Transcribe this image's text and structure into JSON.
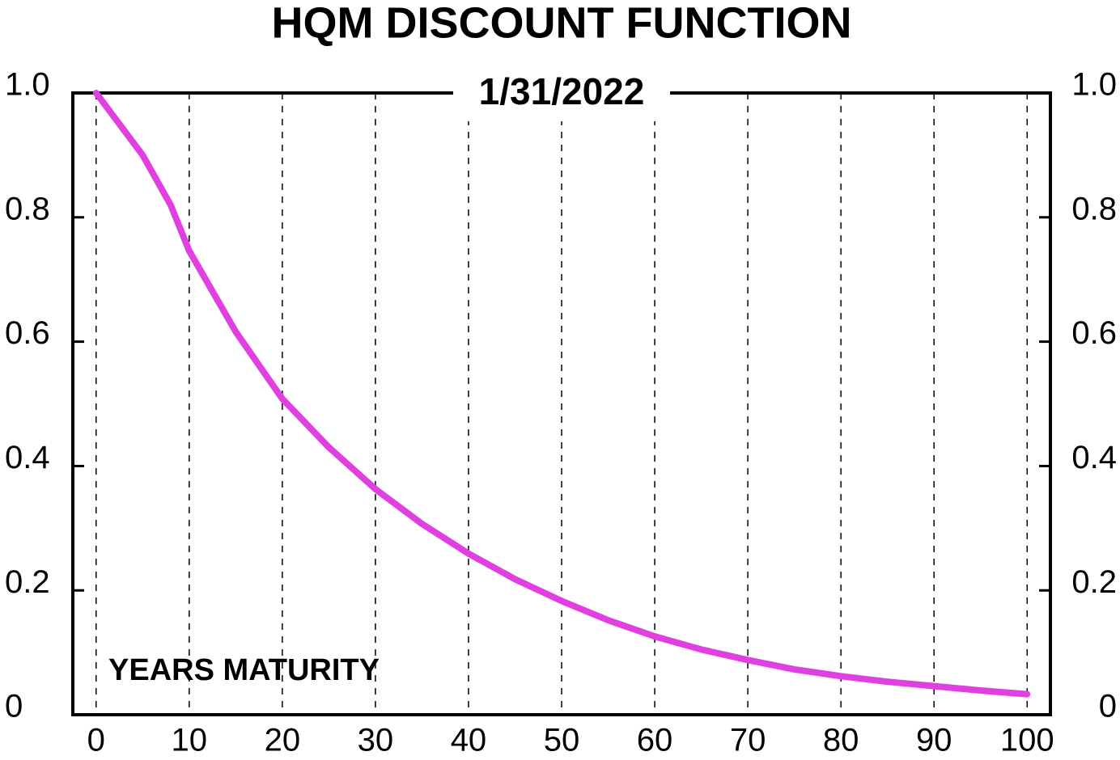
{
  "chart_data": {
    "type": "line",
    "title": "HQM DISCOUNT FUNCTION",
    "subtitle": "1/31/2022",
    "annotation": "YEARS MATURITY",
    "x": [
      0,
      5,
      8,
      10,
      15,
      20,
      25,
      30,
      35,
      40,
      45,
      50,
      55,
      60,
      65,
      70,
      75,
      80,
      85,
      90,
      95,
      100
    ],
    "values": [
      1.0,
      0.9,
      0.82,
      0.746,
      0.616,
      0.508,
      0.43,
      0.363,
      0.307,
      0.259,
      0.218,
      0.183,
      0.152,
      0.126,
      0.105,
      0.088,
      0.073,
      0.062,
      0.053,
      0.046,
      0.039,
      0.033
    ],
    "color": "#e040e0",
    "xlim": [
      -2.5,
      102.5
    ],
    "xticks": [
      0,
      10,
      20,
      30,
      40,
      50,
      60,
      70,
      80,
      90,
      100
    ],
    "ylim": [
      0,
      1
    ],
    "yticks": [
      0,
      0.2,
      0.4,
      0.6,
      0.8,
      {
        "value": 1,
        "label": "1.0"
      }
    ],
    "y2lim": [
      0,
      1
    ],
    "y2ticks": [
      0,
      0.2,
      0.4,
      0.6,
      0.8,
      {
        "value": 1,
        "label": "1.0"
      }
    ],
    "grid": true
  }
}
